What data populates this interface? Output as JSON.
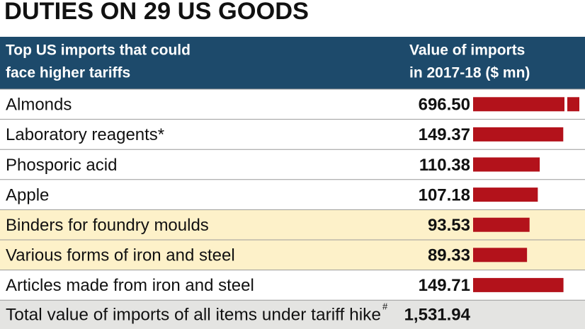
{
  "chart_data": {
    "type": "bar",
    "title": "DUTIES ON 29 US GOODS",
    "column_headers": [
      [
        "Top US imports that could",
        "face higher tariffs"
      ],
      [
        "Value of imports",
        "in 2017-18 ($ mn)"
      ]
    ],
    "categories": [
      "Almonds",
      "Laboratory reagents*",
      "Phosporic acid",
      "Apple",
      "Binders for foundry moulds",
      "Various forms of iron and steel",
      "Articles made from iron and steel"
    ],
    "values": [
      696.5,
      149.37,
      110.38,
      107.18,
      93.53,
      89.33,
      149.71
    ],
    "value_labels": [
      "696.50",
      "149.37",
      "110.38",
      "107.18",
      "93.53",
      "89.33",
      "149.71"
    ],
    "row_colors": [
      "#ffffff",
      "#ffffff",
      "#ffffff",
      "#ffffff",
      "#fdf1c9",
      "#fdf1c9",
      "#ffffff"
    ],
    "color": "#b3121b",
    "header_color": "#1d4a6b",
    "xlim": [
      0,
      176
    ],
    "total": {
      "label": "Total value of imports of all items under tariff hike",
      "footnote": "#",
      "value": 1531.94,
      "value_label": "1,531.94",
      "color": "#e4e4e2"
    }
  }
}
